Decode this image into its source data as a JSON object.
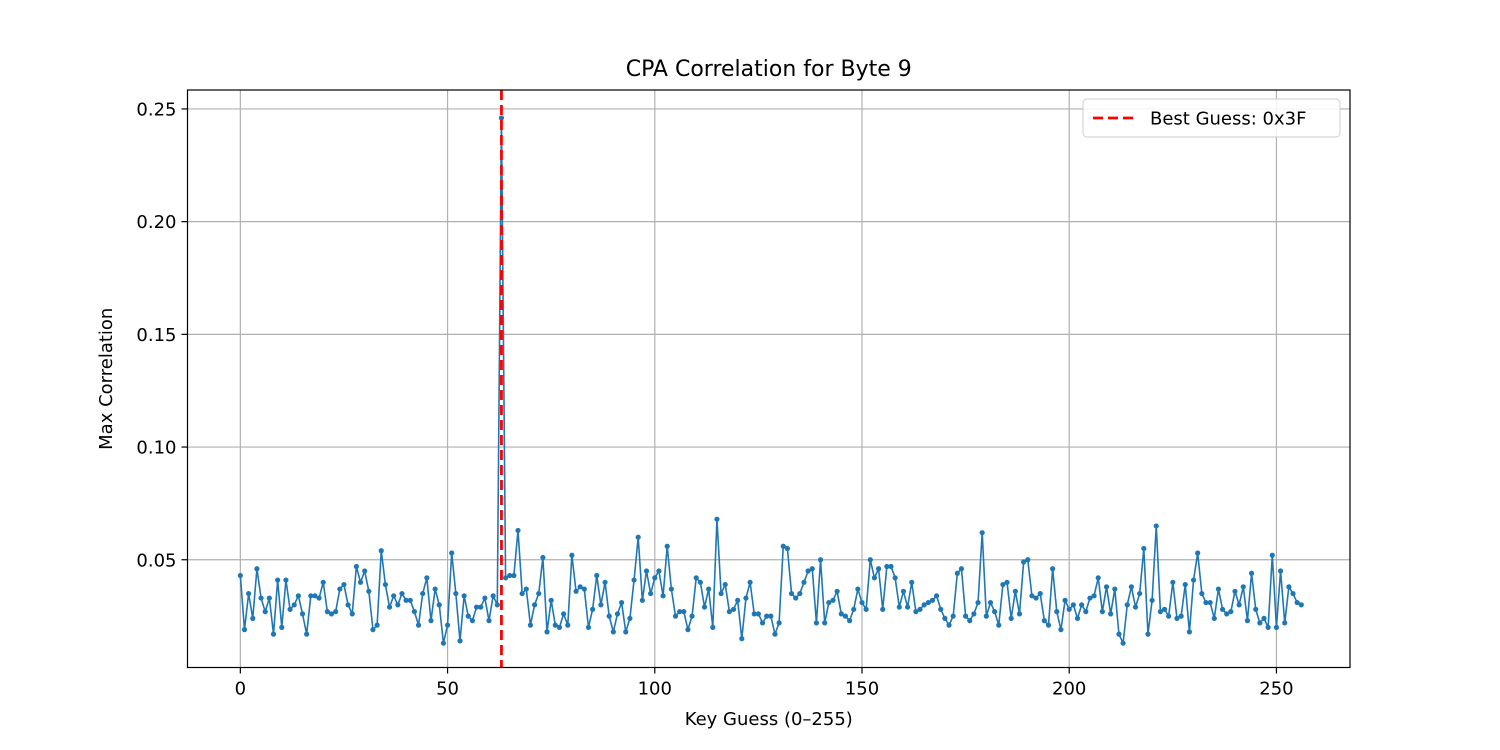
{
  "chart_data": {
    "type": "line",
    "title": "CPA Correlation for Byte 9",
    "xlabel": "Key Guess (0–255)",
    "ylabel": "Max Correlation",
    "xlim": [
      -12.75,
      267.75
    ],
    "ylim": [
      0.0022,
      0.2584
    ],
    "xticks": [
      0,
      50,
      100,
      150,
      200,
      250
    ],
    "yticks": [
      0.05,
      0.1,
      0.15,
      0.2,
      0.25
    ],
    "xtick_labels": [
      "0",
      "50",
      "100",
      "150",
      "200",
      "250"
    ],
    "ytick_labels": [
      "0.05",
      "0.10",
      "0.15",
      "0.20",
      "0.25"
    ],
    "grid": true,
    "legend_position": "top-right",
    "series_color": "#1f77b4",
    "marker": "circle",
    "best_guess": {
      "x": 63,
      "label": "Best Guess: 0x3F",
      "color": "#ff0000",
      "style": "dashed"
    },
    "series": [
      {
        "values": [
          0.043,
          0.019,
          0.035,
          0.024,
          0.046,
          0.033,
          0.027,
          0.033,
          0.017,
          0.041,
          0.02,
          0.041,
          0.028,
          0.03,
          0.034,
          0.026,
          0.017,
          0.034,
          0.034,
          0.033,
          0.04,
          0.027,
          0.026,
          0.027,
          0.037,
          0.039,
          0.03,
          0.026,
          0.047,
          0.04,
          0.045,
          0.036,
          0.019,
          0.021,
          0.054,
          0.039,
          0.029,
          0.034,
          0.03,
          0.035,
          0.032,
          0.032,
          0.027,
          0.021,
          0.035,
          0.042,
          0.023,
          0.037,
          0.03,
          0.013,
          0.021,
          0.053,
          0.035,
          0.014,
          0.034,
          0.025,
          0.023,
          0.029,
          0.029,
          0.033,
          0.023,
          0.034,
          0.03,
          0.246,
          0.042,
          0.043,
          0.043,
          0.063,
          0.035,
          0.037,
          0.021,
          0.03,
          0.035,
          0.051,
          0.018,
          0.032,
          0.021,
          0.02,
          0.026,
          0.021,
          0.052,
          0.036,
          0.038,
          0.037,
          0.02,
          0.028,
          0.043,
          0.03,
          0.04,
          0.025,
          0.018,
          0.026,
          0.031,
          0.018,
          0.024,
          0.041,
          0.06,
          0.032,
          0.045,
          0.035,
          0.042,
          0.045,
          0.034,
          0.056,
          0.037,
          0.025,
          0.027,
          0.027,
          0.019,
          0.025,
          0.042,
          0.04,
          0.029,
          0.037,
          0.02,
          0.068,
          0.035,
          0.039,
          0.027,
          0.028,
          0.032,
          0.015,
          0.033,
          0.04,
          0.026,
          0.026,
          0.022,
          0.025,
          0.025,
          0.017,
          0.022,
          0.056,
          0.055,
          0.035,
          0.033,
          0.035,
          0.04,
          0.045,
          0.046,
          0.022,
          0.05,
          0.022,
          0.031,
          0.032,
          0.036,
          0.026,
          0.025,
          0.023,
          0.028,
          0.037,
          0.031,
          0.028,
          0.05,
          0.042,
          0.046,
          0.028,
          0.047,
          0.047,
          0.042,
          0.029,
          0.036,
          0.029,
          0.04,
          0.027,
          0.028,
          0.03,
          0.031,
          0.032,
          0.034,
          0.028,
          0.024,
          0.021,
          0.025,
          0.044,
          0.046,
          0.025,
          0.023,
          0.026,
          0.031,
          0.062,
          0.025,
          0.031,
          0.027,
          0.021,
          0.039,
          0.04,
          0.024,
          0.036,
          0.026,
          0.049,
          0.05,
          0.034,
          0.033,
          0.035,
          0.023,
          0.021,
          0.046,
          0.027,
          0.019,
          0.032,
          0.028,
          0.03,
          0.024,
          0.03,
          0.027,
          0.033,
          0.034,
          0.042,
          0.027,
          0.038,
          0.026,
          0.037,
          0.017,
          0.013,
          0.03,
          0.038,
          0.029,
          0.035,
          0.055,
          0.017,
          0.032,
          0.065,
          0.027,
          0.028,
          0.025,
          0.04,
          0.024,
          0.025,
          0.039,
          0.018,
          0.041,
          0.053,
          0.035,
          0.031,
          0.031,
          0.024,
          0.037,
          0.028,
          0.026,
          0.027,
          0.036,
          0.03,
          0.038,
          0.023,
          0.044,
          0.028,
          0.022,
          0.024,
          0.02,
          0.052,
          0.02,
          0.045,
          0.022,
          0.038,
          0.035,
          0.031,
          0.03
        ]
      }
    ]
  }
}
